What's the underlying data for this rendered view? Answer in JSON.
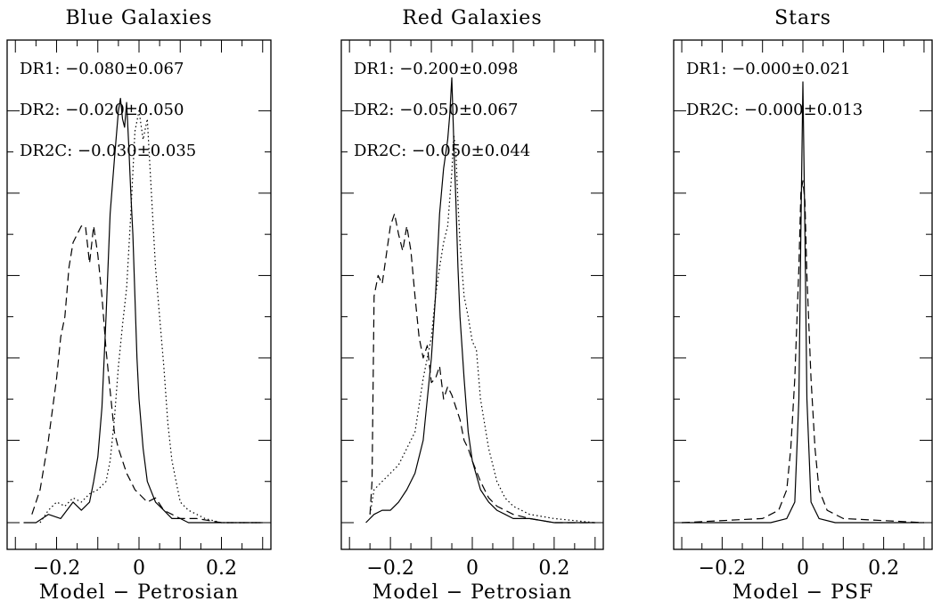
{
  "chart_data": [
    {
      "type": "line",
      "title": "Blue Galaxies",
      "xlabel": "Model − Petrosian",
      "ylabel": "",
      "xlim": [
        -0.32,
        0.32
      ],
      "ylim": [
        0,
        1.15
      ],
      "xticks": [
        -0.2,
        0,
        0.2
      ],
      "xtick_labels": [
        "−0.2",
        "0",
        "0.2"
      ],
      "annotations": [
        {
          "label": "DR1:",
          "value": "−0.080±0.067"
        },
        {
          "label": "DR2:",
          "value": "−0.020±0.050"
        },
        {
          "label": "DR2C:",
          "value": "−0.030±0.035"
        }
      ],
      "series": [
        {
          "style": "solid",
          "x": [
            -0.28,
            -0.25,
            -0.22,
            -0.19,
            -0.16,
            -0.14,
            -0.12,
            -0.11,
            -0.1,
            -0.09,
            -0.08,
            -0.07,
            -0.06,
            -0.05,
            -0.045,
            -0.04,
            -0.035,
            -0.03,
            -0.025,
            -0.02,
            -0.015,
            -0.01,
            -0.005,
            0.0,
            0.01,
            0.02,
            0.04,
            0.06,
            0.08,
            0.1,
            0.12,
            0.16,
            0.2,
            0.3
          ],
          "y": [
            0,
            0,
            0.02,
            0.01,
            0.05,
            0.03,
            0.05,
            0.1,
            0.16,
            0.28,
            0.5,
            0.75,
            0.88,
            1.0,
            1.03,
            0.98,
            0.96,
            1.02,
            0.92,
            0.8,
            0.7,
            0.55,
            0.4,
            0.3,
            0.18,
            0.1,
            0.05,
            0.03,
            0.01,
            0.01,
            0,
            0,
            0,
            0
          ]
        },
        {
          "style": "dashed",
          "x": [
            -0.26,
            -0.24,
            -0.22,
            -0.2,
            -0.19,
            -0.18,
            -0.17,
            -0.16,
            -0.15,
            -0.14,
            -0.13,
            -0.12,
            -0.11,
            -0.1,
            -0.09,
            -0.08,
            -0.07,
            -0.06,
            -0.05,
            -0.04,
            -0.03,
            -0.02,
            -0.01,
            0.0,
            0.02,
            0.04,
            0.06,
            0.08,
            0.1,
            0.14,
            0.2,
            0.3
          ],
          "y": [
            0.02,
            0.08,
            0.2,
            0.35,
            0.45,
            0.5,
            0.62,
            0.68,
            0.7,
            0.72,
            0.72,
            0.63,
            0.72,
            0.65,
            0.55,
            0.42,
            0.32,
            0.22,
            0.18,
            0.15,
            0.12,
            0.1,
            0.08,
            0.07,
            0.05,
            0.06,
            0.03,
            0.02,
            0.01,
            0.01,
            0,
            0
          ]
        },
        {
          "style": "dotted",
          "x": [
            -0.24,
            -0.22,
            -0.2,
            -0.18,
            -0.16,
            -0.14,
            -0.12,
            -0.1,
            -0.08,
            -0.07,
            -0.06,
            -0.05,
            -0.04,
            -0.03,
            -0.02,
            -0.01,
            0.0,
            0.01,
            0.02,
            0.03,
            0.04,
            0.05,
            0.06,
            0.07,
            0.08,
            0.09,
            0.1,
            0.12,
            0.14,
            0.16,
            0.2,
            0.3
          ],
          "y": [
            0,
            0.03,
            0.05,
            0.04,
            0.06,
            0.05,
            0.07,
            0.08,
            0.1,
            0.15,
            0.25,
            0.38,
            0.48,
            0.57,
            0.75,
            0.95,
            1.0,
            0.93,
            0.98,
            0.8,
            0.62,
            0.5,
            0.38,
            0.24,
            0.15,
            0.1,
            0.05,
            0.03,
            0.02,
            0.01,
            0,
            0
          ]
        }
      ]
    },
    {
      "type": "line",
      "title": "Red Galaxies",
      "xlabel": "Model − Petrosian",
      "ylabel": "",
      "xlim": [
        -0.32,
        0.32
      ],
      "ylim": [
        0,
        1.15
      ],
      "xticks": [
        -0.2,
        0,
        0.2
      ],
      "xtick_labels": [
        "−0.2",
        "0",
        "0.2"
      ],
      "annotations": [
        {
          "label": "DR1:",
          "value": "−0.200±0.098"
        },
        {
          "label": "DR2:",
          "value": "−0.050±0.067"
        },
        {
          "label": "DR2C:",
          "value": "−0.050±0.044"
        }
      ],
      "series": [
        {
          "style": "solid",
          "x": [
            -0.26,
            -0.24,
            -0.22,
            -0.2,
            -0.18,
            -0.16,
            -0.14,
            -0.12,
            -0.1,
            -0.09,
            -0.08,
            -0.07,
            -0.06,
            -0.055,
            -0.05,
            -0.045,
            -0.04,
            -0.035,
            -0.03,
            -0.02,
            -0.01,
            0.0,
            0.02,
            0.04,
            0.06,
            0.08,
            0.1,
            0.14,
            0.2,
            0.3
          ],
          "y": [
            0,
            0.02,
            0.03,
            0.03,
            0.05,
            0.08,
            0.12,
            0.2,
            0.4,
            0.55,
            0.75,
            0.86,
            0.93,
            0.99,
            1.08,
            0.92,
            0.78,
            0.62,
            0.5,
            0.35,
            0.22,
            0.15,
            0.08,
            0.05,
            0.03,
            0.02,
            0.01,
            0.01,
            0,
            0
          ]
        },
        {
          "style": "dashed",
          "x": [
            -0.25,
            -0.245,
            -0.24,
            -0.23,
            -0.22,
            -0.21,
            -0.2,
            -0.19,
            -0.18,
            -0.17,
            -0.16,
            -0.15,
            -0.14,
            -0.13,
            -0.12,
            -0.11,
            -0.1,
            -0.09,
            -0.08,
            -0.07,
            -0.06,
            -0.05,
            -0.04,
            -0.03,
            -0.02,
            -0.01,
            0.0,
            0.02,
            0.04,
            0.06,
            0.08,
            0.1,
            0.14,
            0.2,
            0.3
          ],
          "y": [
            0.02,
            0.1,
            0.55,
            0.6,
            0.58,
            0.65,
            0.72,
            0.75,
            0.7,
            0.66,
            0.72,
            0.66,
            0.55,
            0.45,
            0.4,
            0.43,
            0.34,
            0.35,
            0.38,
            0.3,
            0.33,
            0.31,
            0.28,
            0.25,
            0.2,
            0.18,
            0.15,
            0.1,
            0.06,
            0.04,
            0.03,
            0.02,
            0.01,
            0,
            0
          ]
        },
        {
          "style": "dotted",
          "x": [
            -0.25,
            -0.24,
            -0.22,
            -0.2,
            -0.18,
            -0.16,
            -0.14,
            -0.12,
            -0.1,
            -0.09,
            -0.08,
            -0.07,
            -0.06,
            -0.05,
            -0.045,
            -0.04,
            -0.035,
            -0.03,
            -0.02,
            -0.01,
            0.0,
            0.01,
            0.02,
            0.03,
            0.04,
            0.06,
            0.08,
            0.1,
            0.14,
            0.2,
            0.3
          ],
          "y": [
            0.02,
            0.08,
            0.1,
            0.12,
            0.14,
            0.18,
            0.22,
            0.35,
            0.45,
            0.55,
            0.62,
            0.68,
            0.72,
            0.85,
            0.94,
            0.9,
            0.78,
            0.68,
            0.55,
            0.5,
            0.44,
            0.42,
            0.3,
            0.24,
            0.18,
            0.1,
            0.06,
            0.04,
            0.02,
            0.01,
            0
          ]
        }
      ]
    },
    {
      "type": "line",
      "title": "Stars",
      "xlabel": "Model − PSF",
      "ylabel": "",
      "xlim": [
        -0.32,
        0.32
      ],
      "ylim": [
        0,
        1.15
      ],
      "xticks": [
        -0.2,
        0,
        0.2
      ],
      "xtick_labels": [
        "−0.2",
        "0",
        "0.2"
      ],
      "annotations": [
        {
          "label": "DR1:",
          "value": "−0.000±0.021"
        },
        {
          "label": "DR2C:",
          "value": "−0.000±0.013"
        }
      ],
      "series": [
        {
          "style": "solid",
          "x": [
            -0.3,
            -0.08,
            -0.04,
            -0.02,
            -0.01,
            -0.005,
            0.0,
            0.005,
            0.01,
            0.02,
            0.04,
            0.08,
            0.3
          ],
          "y": [
            0,
            0,
            0.01,
            0.05,
            0.3,
            0.7,
            1.07,
            0.7,
            0.3,
            0.05,
            0.01,
            0,
            0
          ]
        },
        {
          "style": "dashed",
          "x": [
            -0.3,
            -0.1,
            -0.06,
            -0.04,
            -0.03,
            -0.02,
            -0.01,
            -0.005,
            0.0,
            0.005,
            0.01,
            0.02,
            0.03,
            0.04,
            0.06,
            0.1,
            0.3
          ],
          "y": [
            0,
            0.01,
            0.03,
            0.08,
            0.18,
            0.35,
            0.62,
            0.8,
            0.83,
            0.78,
            0.6,
            0.35,
            0.18,
            0.08,
            0.03,
            0.01,
            0
          ]
        }
      ]
    }
  ]
}
